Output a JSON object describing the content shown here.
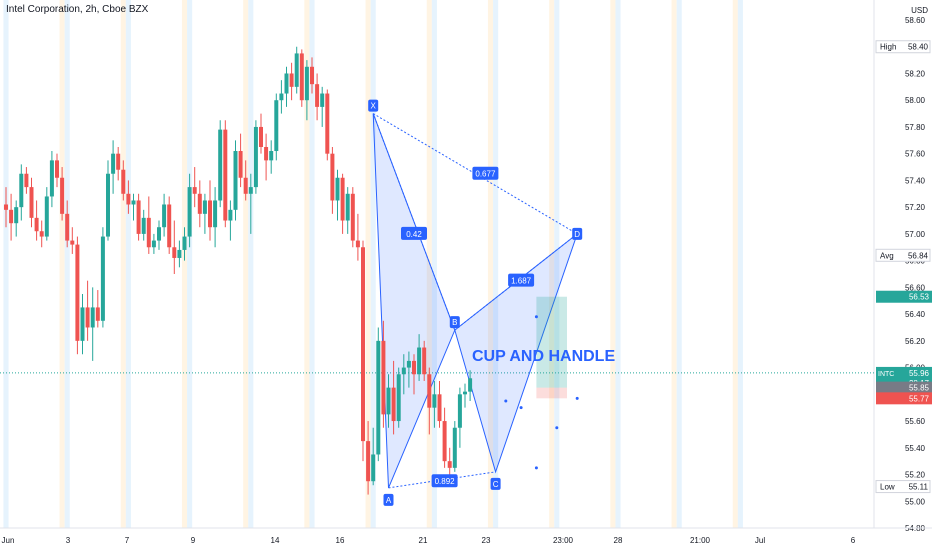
{
  "header": {
    "title": "Intel Corporation, 2h, Cboe BZX",
    "currency": "USD"
  },
  "colors": {
    "up": "#26a69a",
    "down": "#ef5350",
    "pattern": "#2962ff",
    "session_orange": "#fff3e0",
    "session_blue": "#e3f2fd"
  },
  "chart_data": {
    "type": "candlestick",
    "ylim": [
      54.8,
      58.6
    ],
    "y_ticks": [
      "58.60",
      "58.40",
      "58.20",
      "58.00",
      "57.80",
      "57.60",
      "57.40",
      "57.20",
      "57.00",
      "56.80",
      "56.60",
      "56.40",
      "56.20",
      "56.00",
      "55.80",
      "55.60",
      "55.40",
      "55.20",
      "55.00",
      "54.80"
    ],
    "x_ticks": [
      "Jun",
      "3",
      "7",
      "9",
      "14",
      "16",
      "21",
      "23",
      "23:00",
      "28",
      "21:00",
      "Jul",
      "6"
    ],
    "grid": false,
    "candles": [
      {
        "o": 57.22,
        "h": 57.35,
        "l": 57.05,
        "c": 57.18
      },
      {
        "o": 57.18,
        "h": 57.3,
        "l": 56.95,
        "c": 57.08
      },
      {
        "o": 57.08,
        "h": 57.25,
        "l": 56.98,
        "c": 57.2
      },
      {
        "o": 57.2,
        "h": 57.52,
        "l": 57.1,
        "c": 57.45
      },
      {
        "o": 57.45,
        "h": 57.5,
        "l": 57.3,
        "c": 57.35
      },
      {
        "o": 57.35,
        "h": 57.42,
        "l": 57.05,
        "c": 57.12
      },
      {
        "o": 57.12,
        "h": 57.25,
        "l": 56.95,
        "c": 57.02
      },
      {
        "o": 57.02,
        "h": 57.1,
        "l": 56.9,
        "c": 56.98
      },
      {
        "o": 56.98,
        "h": 57.35,
        "l": 56.95,
        "c": 57.28
      },
      {
        "o": 57.28,
        "h": 57.62,
        "l": 57.2,
        "c": 57.55
      },
      {
        "o": 57.55,
        "h": 57.6,
        "l": 57.35,
        "c": 57.42
      },
      {
        "o": 57.42,
        "h": 57.5,
        "l": 57.1,
        "c": 57.15
      },
      {
        "o": 57.15,
        "h": 57.25,
        "l": 56.9,
        "c": 56.95
      },
      {
        "o": 56.95,
        "h": 57.05,
        "l": 56.85,
        "c": 56.92
      },
      {
        "o": 56.92,
        "h": 56.98,
        "l": 56.1,
        "c": 56.2
      },
      {
        "o": 56.2,
        "h": 56.55,
        "l": 56.1,
        "c": 56.45
      },
      {
        "o": 56.45,
        "h": 56.65,
        "l": 56.2,
        "c": 56.3
      },
      {
        "o": 56.3,
        "h": 56.6,
        "l": 56.05,
        "c": 56.45
      },
      {
        "o": 56.45,
        "h": 56.58,
        "l": 56.3,
        "c": 56.35
      },
      {
        "o": 56.35,
        "h": 57.05,
        "l": 56.3,
        "c": 56.98
      },
      {
        "o": 56.98,
        "h": 57.55,
        "l": 56.95,
        "c": 57.45
      },
      {
        "o": 57.45,
        "h": 57.7,
        "l": 57.3,
        "c": 57.6
      },
      {
        "o": 57.6,
        "h": 57.65,
        "l": 57.4,
        "c": 57.48
      },
      {
        "o": 57.48,
        "h": 57.55,
        "l": 57.25,
        "c": 57.3
      },
      {
        "o": 57.3,
        "h": 57.4,
        "l": 57.15,
        "c": 57.22
      },
      {
        "o": 57.22,
        "h": 57.3,
        "l": 57.1,
        "c": 57.25
      },
      {
        "o": 57.25,
        "h": 57.3,
        "l": 56.95,
        "c": 57.0
      },
      {
        "o": 57.0,
        "h": 57.18,
        "l": 56.95,
        "c": 57.12
      },
      {
        "o": 57.12,
        "h": 57.28,
        "l": 56.85,
        "c": 56.9
      },
      {
        "o": 56.9,
        "h": 57.0,
        "l": 56.85,
        "c": 56.95
      },
      {
        "o": 56.95,
        "h": 57.1,
        "l": 56.88,
        "c": 57.05
      },
      {
        "o": 57.05,
        "h": 57.3,
        "l": 56.98,
        "c": 57.22
      },
      {
        "o": 57.22,
        "h": 57.28,
        "l": 56.85,
        "c": 56.9
      },
      {
        "o": 56.9,
        "h": 57.1,
        "l": 56.7,
        "c": 56.82
      },
      {
        "o": 56.82,
        "h": 56.95,
        "l": 56.75,
        "c": 56.88
      },
      {
        "o": 56.88,
        "h": 57.05,
        "l": 56.8,
        "c": 56.98
      },
      {
        "o": 56.98,
        "h": 57.45,
        "l": 56.9,
        "c": 57.35
      },
      {
        "o": 57.35,
        "h": 57.5,
        "l": 57.2,
        "c": 57.3
      },
      {
        "o": 57.3,
        "h": 57.4,
        "l": 57.05,
        "c": 57.15
      },
      {
        "o": 57.15,
        "h": 57.3,
        "l": 57.0,
        "c": 57.25
      },
      {
        "o": 57.25,
        "h": 57.4,
        "l": 56.95,
        "c": 57.05
      },
      {
        "o": 57.05,
        "h": 57.35,
        "l": 56.9,
        "c": 57.25
      },
      {
        "o": 57.25,
        "h": 57.85,
        "l": 57.2,
        "c": 57.78
      },
      {
        "o": 57.78,
        "h": 57.85,
        "l": 57.05,
        "c": 57.1
      },
      {
        "o": 57.1,
        "h": 57.25,
        "l": 56.95,
        "c": 57.18
      },
      {
        "o": 57.18,
        "h": 57.7,
        "l": 57.1,
        "c": 57.62
      },
      {
        "o": 57.62,
        "h": 57.75,
        "l": 57.35,
        "c": 57.42
      },
      {
        "o": 57.42,
        "h": 57.55,
        "l": 57.25,
        "c": 57.3
      },
      {
        "o": 57.3,
        "h": 57.45,
        "l": 57.0,
        "c": 57.35
      },
      {
        "o": 57.35,
        "h": 57.85,
        "l": 57.3,
        "c": 57.8
      },
      {
        "o": 57.8,
        "h": 57.9,
        "l": 57.6,
        "c": 57.65
      },
      {
        "o": 57.65,
        "h": 57.75,
        "l": 57.4,
        "c": 57.55
      },
      {
        "o": 57.55,
        "h": 57.7,
        "l": 57.45,
        "c": 57.62
      },
      {
        "o": 57.62,
        "h": 58.05,
        "l": 57.55,
        "c": 58.0
      },
      {
        "o": 58.0,
        "h": 58.15,
        "l": 57.9,
        "c": 58.05
      },
      {
        "o": 58.05,
        "h": 58.25,
        "l": 57.95,
        "c": 58.2
      },
      {
        "o": 58.2,
        "h": 58.28,
        "l": 58.0,
        "c": 58.1
      },
      {
        "o": 58.1,
        "h": 58.4,
        "l": 58.05,
        "c": 58.35
      },
      {
        "o": 58.35,
        "h": 58.38,
        "l": 57.95,
        "c": 58.0
      },
      {
        "o": 58.0,
        "h": 58.3,
        "l": 57.85,
        "c": 58.25
      },
      {
        "o": 58.25,
        "h": 58.32,
        "l": 58.05,
        "c": 58.12
      },
      {
        "o": 58.12,
        "h": 58.2,
        "l": 57.85,
        "c": 57.95
      },
      {
        "o": 57.95,
        "h": 58.1,
        "l": 57.8,
        "c": 58.05
      },
      {
        "o": 58.05,
        "h": 58.08,
        "l": 57.55,
        "c": 57.6
      },
      {
        "o": 57.6,
        "h": 57.65,
        "l": 57.15,
        "c": 57.25
      },
      {
        "o": 57.25,
        "h": 57.48,
        "l": 57.1,
        "c": 57.42
      },
      {
        "o": 57.42,
        "h": 57.45,
        "l": 57.0,
        "c": 57.1
      },
      {
        "o": 57.1,
        "h": 57.35,
        "l": 57.0,
        "c": 57.3
      },
      {
        "o": 57.3,
        "h": 57.35,
        "l": 56.9,
        "c": 56.95
      },
      {
        "o": 56.95,
        "h": 57.15,
        "l": 56.8,
        "c": 56.9
      },
      {
        "o": 56.9,
        "h": 56.95,
        "l": 55.3,
        "c": 55.45
      },
      {
        "o": 55.45,
        "h": 55.6,
        "l": 55.05,
        "c": 55.15
      },
      {
        "o": 55.15,
        "h": 55.55,
        "l": 55.12,
        "c": 55.35
      },
      {
        "o": 55.35,
        "h": 56.3,
        "l": 55.3,
        "c": 56.2
      },
      {
        "o": 56.2,
        "h": 56.35,
        "l": 55.55,
        "c": 55.65
      },
      {
        "o": 55.65,
        "h": 55.95,
        "l": 55.55,
        "c": 55.85
      },
      {
        "o": 55.85,
        "h": 56.05,
        "l": 55.5,
        "c": 55.6
      },
      {
        "o": 55.6,
        "h": 56.0,
        "l": 55.55,
        "c": 55.95
      },
      {
        "o": 55.95,
        "h": 56.1,
        "l": 55.8,
        "c": 56.0
      },
      {
        "o": 56.0,
        "h": 56.12,
        "l": 55.85,
        "c": 56.05
      },
      {
        "o": 56.05,
        "h": 56.1,
        "l": 55.8,
        "c": 55.95
      },
      {
        "o": 55.95,
        "h": 56.25,
        "l": 55.9,
        "c": 56.15
      },
      {
        "o": 56.15,
        "h": 56.2,
        "l": 55.9,
        "c": 55.95
      },
      {
        "o": 55.95,
        "h": 56.0,
        "l": 55.5,
        "c": 55.7
      },
      {
        "o": 55.7,
        "h": 55.9,
        "l": 55.55,
        "c": 55.8
      },
      {
        "o": 55.8,
        "h": 55.9,
        "l": 55.55,
        "c": 55.6
      },
      {
        "o": 55.6,
        "h": 55.7,
        "l": 55.25,
        "c": 55.3
      },
      {
        "o": 55.3,
        "h": 55.4,
        "l": 55.2,
        "c": 55.25
      },
      {
        "o": 55.25,
        "h": 55.6,
        "l": 55.22,
        "c": 55.55
      },
      {
        "o": 55.55,
        "h": 55.85,
        "l": 55.4,
        "c": 55.8
      },
      {
        "o": 55.8,
        "h": 55.88,
        "l": 55.7,
        "c": 55.82
      },
      {
        "o": 55.82,
        "h": 55.98,
        "l": 55.75,
        "c": 55.92
      }
    ],
    "pattern": {
      "name": "CUP AND HANDLE",
      "points": [
        {
          "label": "X",
          "i": 72,
          "p": 57.9
        },
        {
          "label": "A",
          "i": 75,
          "p": 55.1
        },
        {
          "label": "B",
          "i": 88,
          "p": 56.28
        },
        {
          "label": "C",
          "i": 96,
          "p": 55.22
        },
        {
          "label": "D",
          "i": 112,
          "p": 57.0
        }
      ],
      "ratios": [
        {
          "label": "0.42",
          "i": 80,
          "p": 57.0
        },
        {
          "label": "0.677",
          "i": 94,
          "p": 57.45
        },
        {
          "label": "1.687",
          "i": 101,
          "p": 56.65
        },
        {
          "label": "0.892",
          "i": 86,
          "p": 55.15
        }
      ]
    },
    "price_labels": [
      {
        "text": "High",
        "value": "58.40",
        "p": 58.4,
        "style": "plain"
      },
      {
        "text": "Avg",
        "value": "56.84",
        "p": 56.84,
        "style": "plain"
      },
      {
        "text": "",
        "value": "56.53",
        "p": 56.53,
        "style": "green"
      },
      {
        "text": "INTC",
        "value": "55.96",
        "sub": "28:17",
        "p": 55.96,
        "style": "green"
      },
      {
        "text": "",
        "value": "55.85",
        "p": 55.85,
        "style": "gray"
      },
      {
        "text": "",
        "value": "55.77",
        "p": 55.77,
        "style": "red"
      },
      {
        "text": "Low",
        "value": "55.11",
        "p": 55.11,
        "style": "plain"
      }
    ],
    "position_box": {
      "i0": 104,
      "i1": 110,
      "entry": 55.85,
      "target": 56.53,
      "stop": 55.77
    }
  }
}
